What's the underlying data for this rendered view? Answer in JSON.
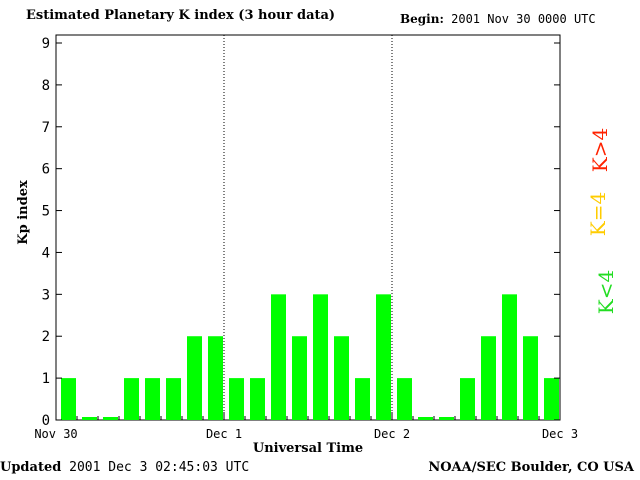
{
  "header": {
    "title": "Estimated Planetary K index (3 hour data)",
    "begin_label": "Begin:",
    "begin_value": "2001 Nov 30 0000 UTC"
  },
  "footer": {
    "updated_label": "Updated",
    "updated_value": "2001 Dec  3 02:45:03 UTC",
    "source": "NOAA/SEC Boulder, CO USA"
  },
  "legend": {
    "gt": "K>4",
    "eq": "K=4",
    "lt": "K<4",
    "colors": {
      "gt": "#ff2200",
      "eq": "#ffcc00",
      "lt": "#22dd22"
    }
  },
  "chart_data": {
    "type": "bar",
    "title": "Estimated Planetary K index (3 hour data)",
    "xlabel": "Universal Time",
    "ylabel": "Kp index",
    "ylim": [
      0,
      9
    ],
    "yticks": [
      "0",
      "1",
      "2",
      "3",
      "4",
      "5",
      "6",
      "7",
      "8",
      "9"
    ],
    "day_labels": [
      "Nov 30",
      "Dec 1",
      "Dec 2",
      "Dec 3"
    ],
    "bar_color": "#00ff00",
    "values": [
      1,
      0,
      0,
      1,
      1,
      1,
      2,
      2,
      1,
      1,
      3,
      2,
      3,
      2,
      1,
      3,
      1,
      0,
      0,
      1,
      2,
      3,
      2,
      1
    ]
  }
}
